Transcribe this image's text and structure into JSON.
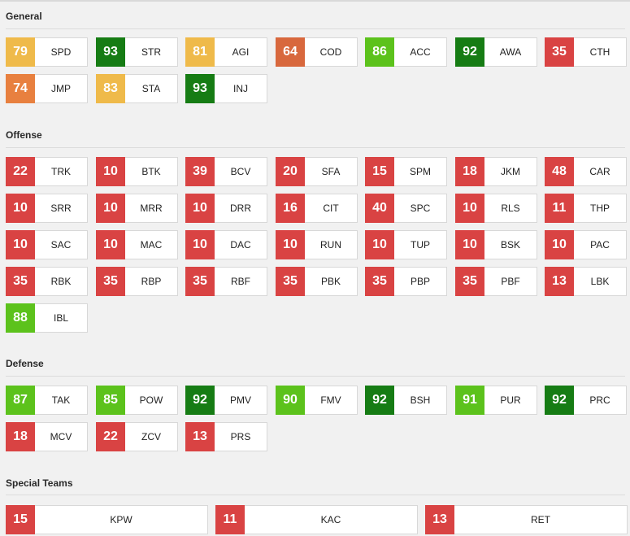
{
  "sections": [
    {
      "title": "General",
      "ratings": [
        {
          "value": "79",
          "abbr": "SPD",
          "color": "#efba4a"
        },
        {
          "value": "93",
          "abbr": "STR",
          "color": "#167c14"
        },
        {
          "value": "81",
          "abbr": "AGI",
          "color": "#efba4a"
        },
        {
          "value": "64",
          "abbr": "COD",
          "color": "#d8683d"
        },
        {
          "value": "86",
          "abbr": "ACC",
          "color": "#5cc21c"
        },
        {
          "value": "92",
          "abbr": "AWA",
          "color": "#167c14"
        },
        {
          "value": "35",
          "abbr": "CTH",
          "color": "#d94343"
        },
        {
          "value": "74",
          "abbr": "JMP",
          "color": "#e8803f"
        },
        {
          "value": "83",
          "abbr": "STA",
          "color": "#efba4a"
        },
        {
          "value": "93",
          "abbr": "INJ",
          "color": "#167c14"
        }
      ]
    },
    {
      "title": "Offense",
      "ratings": [
        {
          "value": "22",
          "abbr": "TRK",
          "color": "#d94343"
        },
        {
          "value": "10",
          "abbr": "BTK",
          "color": "#d94343"
        },
        {
          "value": "39",
          "abbr": "BCV",
          "color": "#d94343"
        },
        {
          "value": "20",
          "abbr": "SFA",
          "color": "#d94343"
        },
        {
          "value": "15",
          "abbr": "SPM",
          "color": "#d94343"
        },
        {
          "value": "18",
          "abbr": "JKM",
          "color": "#d94343"
        },
        {
          "value": "48",
          "abbr": "CAR",
          "color": "#d94343"
        },
        {
          "value": "10",
          "abbr": "SRR",
          "color": "#d94343"
        },
        {
          "value": "10",
          "abbr": "MRR",
          "color": "#d94343"
        },
        {
          "value": "10",
          "abbr": "DRR",
          "color": "#d94343"
        },
        {
          "value": "16",
          "abbr": "CIT",
          "color": "#d94343"
        },
        {
          "value": "40",
          "abbr": "SPC",
          "color": "#d94343"
        },
        {
          "value": "10",
          "abbr": "RLS",
          "color": "#d94343"
        },
        {
          "value": "11",
          "abbr": "THP",
          "color": "#d94343"
        },
        {
          "value": "10",
          "abbr": "SAC",
          "color": "#d94343"
        },
        {
          "value": "10",
          "abbr": "MAC",
          "color": "#d94343"
        },
        {
          "value": "10",
          "abbr": "DAC",
          "color": "#d94343"
        },
        {
          "value": "10",
          "abbr": "RUN",
          "color": "#d94343"
        },
        {
          "value": "10",
          "abbr": "TUP",
          "color": "#d94343"
        },
        {
          "value": "10",
          "abbr": "BSK",
          "color": "#d94343"
        },
        {
          "value": "10",
          "abbr": "PAC",
          "color": "#d94343"
        },
        {
          "value": "35",
          "abbr": "RBK",
          "color": "#d94343"
        },
        {
          "value": "35",
          "abbr": "RBP",
          "color": "#d94343"
        },
        {
          "value": "35",
          "abbr": "RBF",
          "color": "#d94343"
        },
        {
          "value": "35",
          "abbr": "PBK",
          "color": "#d94343"
        },
        {
          "value": "35",
          "abbr": "PBP",
          "color": "#d94343"
        },
        {
          "value": "35",
          "abbr": "PBF",
          "color": "#d94343"
        },
        {
          "value": "13",
          "abbr": "LBK",
          "color": "#d94343"
        },
        {
          "value": "88",
          "abbr": "IBL",
          "color": "#5cc21c"
        }
      ]
    },
    {
      "title": "Defense",
      "ratings": [
        {
          "value": "87",
          "abbr": "TAK",
          "color": "#5cc21c"
        },
        {
          "value": "85",
          "abbr": "POW",
          "color": "#5cc21c"
        },
        {
          "value": "92",
          "abbr": "PMV",
          "color": "#167c14"
        },
        {
          "value": "90",
          "abbr": "FMV",
          "color": "#5cc21c"
        },
        {
          "value": "92",
          "abbr": "BSH",
          "color": "#167c14"
        },
        {
          "value": "91",
          "abbr": "PUR",
          "color": "#5cc21c"
        },
        {
          "value": "92",
          "abbr": "PRC",
          "color": "#167c14"
        },
        {
          "value": "18",
          "abbr": "MCV",
          "color": "#d94343"
        },
        {
          "value": "22",
          "abbr": "ZCV",
          "color": "#d94343"
        },
        {
          "value": "13",
          "abbr": "PRS",
          "color": "#d94343"
        }
      ]
    },
    {
      "title": "Special Teams",
      "ratings": [
        {
          "value": "15",
          "abbr": "KPW",
          "color": "#d94343"
        },
        {
          "value": "11",
          "abbr": "KAC",
          "color": "#d94343"
        },
        {
          "value": "13",
          "abbr": "RET",
          "color": "#d94343"
        }
      ]
    }
  ]
}
